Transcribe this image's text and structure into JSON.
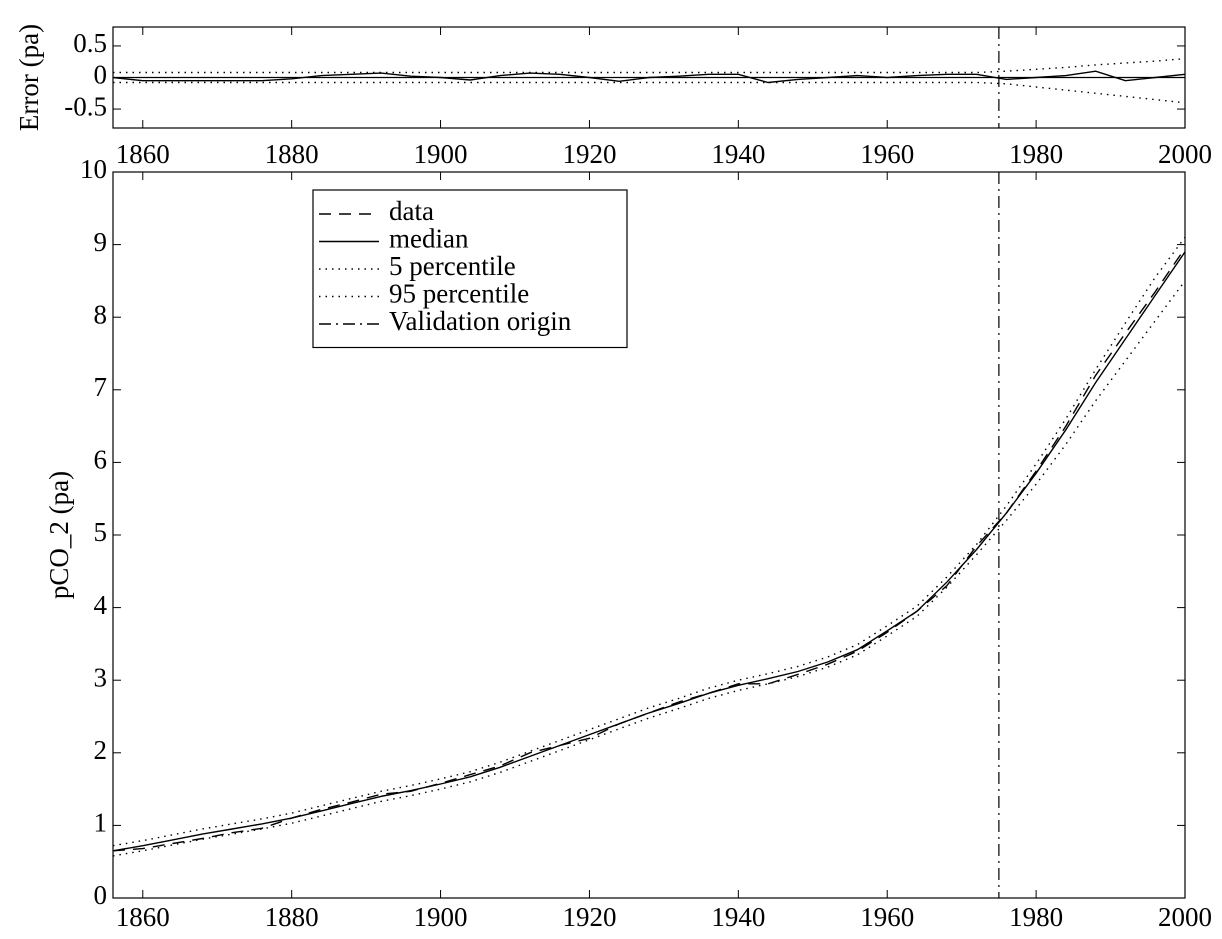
{
  "chart_data": [
    {
      "type": "line",
      "ylabel": "Error (pa)",
      "x": [
        1856,
        1860,
        1864,
        1868,
        1872,
        1876,
        1880,
        1884,
        1888,
        1892,
        1896,
        1900,
        1904,
        1908,
        1912,
        1916,
        1920,
        1924,
        1928,
        1932,
        1936,
        1940,
        1944,
        1948,
        1952,
        1956,
        1960,
        1964,
        1968,
        1972,
        1976,
        1980,
        1984,
        1988,
        1992,
        1996,
        2000
      ],
      "series": [
        {
          "style": "solid",
          "color": "#000000",
          "values": [
            0,
            -0.05,
            -0.05,
            -0.05,
            -0.05,
            -0.05,
            -0.02,
            0.03,
            0.05,
            0.07,
            0.02,
            0,
            -0.04,
            0.03,
            0.07,
            0.05,
            0,
            -0.06,
            0,
            0.02,
            0.05,
            0.05,
            -0.08,
            -0.03,
            0,
            0.03,
            0,
            0.03,
            0.05,
            0.05,
            -0.03,
            0,
            0.03,
            0.1,
            -0.05,
            0,
            0.05
          ]
        },
        {
          "style": "dotted",
          "color": "#000000",
          "values": [
            -0.08,
            -0.08,
            -0.08,
            -0.08,
            -0.08,
            -0.08,
            -0.08,
            -0.08,
            -0.08,
            -0.08,
            -0.08,
            -0.08,
            -0.08,
            -0.08,
            -0.08,
            -0.08,
            -0.08,
            -0.08,
            -0.08,
            -0.08,
            -0.08,
            -0.08,
            -0.08,
            -0.08,
            -0.08,
            -0.08,
            -0.08,
            -0.08,
            -0.08,
            -0.08,
            -0.1,
            -0.15,
            -0.2,
            -0.25,
            -0.3,
            -0.35,
            -0.4
          ]
        },
        {
          "style": "dotted",
          "color": "#000000",
          "values": [
            0.08,
            0.08,
            0.08,
            0.08,
            0.08,
            0.08,
            0.08,
            0.08,
            0.08,
            0.08,
            0.08,
            0.08,
            0.08,
            0.08,
            0.08,
            0.08,
            0.08,
            0.08,
            0.08,
            0.08,
            0.08,
            0.08,
            0.08,
            0.08,
            0.08,
            0.08,
            0.08,
            0.08,
            0.08,
            0.08,
            0.1,
            0.13,
            0.16,
            0.2,
            0.23,
            0.26,
            0.3
          ]
        }
      ],
      "baseline": 0,
      "vline": 1975,
      "xlim": [
        1856,
        2000
      ],
      "xticks": [
        1860,
        1880,
        1900,
        1920,
        1940,
        1960,
        1980,
        2000
      ],
      "ylim": [
        -0.8,
        0.8
      ],
      "yticks": [
        -0.5,
        0,
        0.5
      ]
    },
    {
      "type": "line",
      "ylabel": "pCO_2 (pa)",
      "legend": "upper-left",
      "x": [
        1856,
        1860,
        1864,
        1868,
        1872,
        1876,
        1880,
        1884,
        1888,
        1892,
        1896,
        1900,
        1904,
        1908,
        1912,
        1916,
        1920,
        1924,
        1928,
        1932,
        1936,
        1940,
        1944,
        1948,
        1952,
        1956,
        1960,
        1964,
        1968,
        1972,
        1976,
        1980,
        1984,
        1988,
        1992,
        1996,
        2000
      ],
      "series": [
        {
          "name": "data",
          "style": "dashed",
          "color": "#000000",
          "values": [
            0.65,
            0.68,
            0.75,
            0.82,
            0.9,
            0.96,
            1.1,
            1.22,
            1.32,
            1.43,
            1.47,
            1.58,
            1.7,
            1.82,
            2.0,
            2.1,
            2.2,
            2.4,
            2.55,
            2.7,
            2.82,
            2.95,
            2.95,
            3.08,
            3.22,
            3.4,
            3.66,
            3.95,
            4.3,
            4.85,
            5.3,
            5.88,
            6.5,
            7.2,
            7.78,
            8.35,
            8.95
          ]
        },
        {
          "name": "median",
          "style": "solid",
          "color": "#000000",
          "values": [
            0.65,
            0.72,
            0.8,
            0.88,
            0.95,
            1.02,
            1.1,
            1.2,
            1.3,
            1.4,
            1.48,
            1.57,
            1.67,
            1.8,
            1.95,
            2.1,
            2.25,
            2.4,
            2.55,
            2.68,
            2.82,
            2.93,
            3.02,
            3.12,
            3.25,
            3.42,
            3.68,
            3.95,
            4.35,
            4.8,
            5.3,
            5.85,
            6.45,
            7.1,
            7.7,
            8.3,
            8.9
          ]
        },
        {
          "name": "5 percentile",
          "style": "dotted",
          "color": "#000000",
          "values": [
            0.58,
            0.65,
            0.73,
            0.81,
            0.88,
            0.95,
            1.03,
            1.13,
            1.23,
            1.33,
            1.41,
            1.5,
            1.6,
            1.73,
            1.88,
            2.03,
            2.18,
            2.33,
            2.48,
            2.61,
            2.75,
            2.86,
            2.95,
            3.05,
            3.18,
            3.35,
            3.61,
            3.88,
            4.28,
            4.73,
            5.2,
            5.7,
            6.25,
            6.85,
            7.4,
            7.95,
            8.5
          ]
        },
        {
          "name": "95 percentile",
          "style": "dotted",
          "color": "#000000",
          "values": [
            0.72,
            0.79,
            0.87,
            0.95,
            1.02,
            1.09,
            1.17,
            1.27,
            1.37,
            1.47,
            1.55,
            1.64,
            1.74,
            1.87,
            2.02,
            2.17,
            2.32,
            2.47,
            2.62,
            2.75,
            2.89,
            3.0,
            3.09,
            3.19,
            3.32,
            3.49,
            3.75,
            4.02,
            4.42,
            4.87,
            5.4,
            5.98,
            6.6,
            7.28,
            7.92,
            8.55,
            9.1
          ]
        }
      ],
      "vline": 1975,
      "vline_name": "Validation origin",
      "xlim": [
        1856,
        2000
      ],
      "xticks": [
        1860,
        1880,
        1900,
        1920,
        1940,
        1960,
        1980,
        2000
      ],
      "ylim": [
        0,
        10
      ],
      "yticks": [
        0,
        1,
        2,
        3,
        4,
        5,
        6,
        7,
        8,
        9,
        10
      ]
    }
  ]
}
